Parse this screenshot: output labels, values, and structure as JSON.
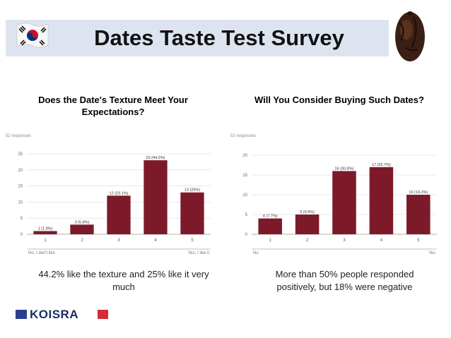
{
  "header": {
    "title": "Dates Taste Test Survey"
  },
  "logo": {
    "text": "KOISRA"
  },
  "colors": {
    "bar": "#7d1a2a",
    "title_bg": "#dde4f0",
    "brand_blue": "#2a3e8c",
    "brand_red": "#d52b3a"
  },
  "chart_data": [
    {
      "type": "bar",
      "title": "Does the Date's Texture Meet Your Expectations?",
      "responses": "52 responses",
      "categories": [
        "1",
        "2",
        "3",
        "4",
        "5"
      ],
      "values": [
        1,
        3,
        12,
        23,
        13
      ],
      "data_labels": [
        "1 (1.9%)",
        "3 (5.8%)",
        "12 (23.1%)",
        "23 (44.2%)",
        "13 (25%)"
      ],
      "yticks": [
        0,
        5,
        10,
        15,
        20,
        25
      ],
      "ylim": [
        0,
        25
      ],
      "x_low_label": "No, I don't like",
      "x_high_label": "Yes, I like it",
      "grid": true,
      "caption": "44.2% like the texture and 25% like it very much"
    },
    {
      "type": "bar",
      "title": "Will You Consider Buying Such Dates?",
      "responses": "52 responses",
      "categories": [
        "1",
        "2",
        "3",
        "4",
        "5"
      ],
      "values": [
        4,
        5,
        16,
        17,
        10
      ],
      "data_labels": [
        "4 (7.7%)",
        "5 (9.6%)",
        "16 (30.8%)",
        "17 (32.7%)",
        "10 (19.2%)"
      ],
      "yticks": [
        0,
        5,
        10,
        15,
        20
      ],
      "ylim": [
        0,
        20
      ],
      "x_low_label": "No",
      "x_high_label": "Yes",
      "grid": true,
      "caption": "More than 50% people responded positively, but 18% were negative"
    }
  ]
}
